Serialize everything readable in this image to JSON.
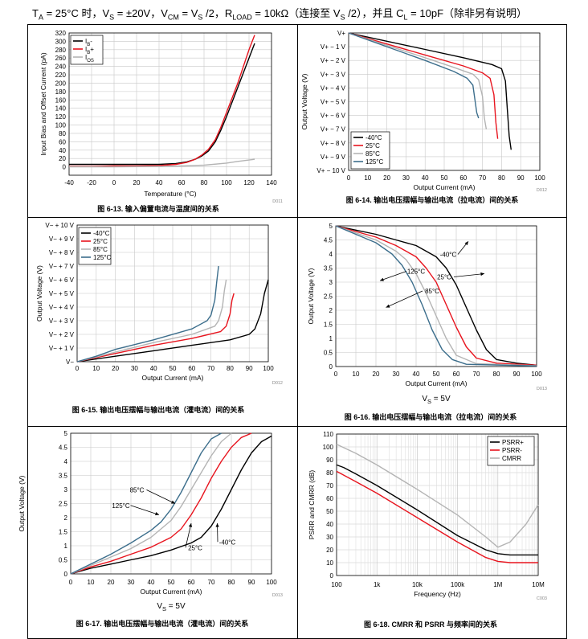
{
  "header": {
    "parts": [
      "T",
      "A",
      " = 25°C 时，V",
      "S",
      " = ±20V，V",
      "CM",
      " = V",
      "S",
      " /2，R",
      "LOAD",
      " = 10kΩ（连接至 V",
      "S",
      " /2），并且 C",
      "L",
      " = 10pF（除非另有说明）"
    ]
  },
  "colors": {
    "black": "#000000",
    "red": "#E8141E",
    "gray": "#B4B4B4",
    "blue": "#3C6E8C"
  },
  "chart_data": [
    {
      "id": "fig13",
      "type": "line",
      "title": "图 6-13. 输入偏置电流与温度间的关系",
      "xlabel": "Temperature (°C)",
      "ylabel": "Input Bias and Offset Current (pA)",
      "xlim": [
        -40,
        140
      ],
      "ylim": [
        -20,
        320
      ],
      "xticks": [
        -40,
        -20,
        0,
        20,
        40,
        60,
        80,
        100,
        120,
        140
      ],
      "yticks": [
        -20,
        0,
        20,
        40,
        60,
        80,
        100,
        120,
        140,
        160,
        180,
        200,
        220,
        240,
        260,
        280,
        300,
        320
      ],
      "ytick_labels": [
        "",
        "0",
        "20",
        "40",
        "60",
        "80",
        "100",
        "120",
        "140",
        "160",
        "180",
        "200",
        "220",
        "240",
        "260",
        "280",
        "300",
        "320"
      ],
      "code": "D011",
      "legend": {
        "position": "top-left",
        "labels": [
          "I_B-",
          "I_B+",
          "I_OS"
        ]
      },
      "series": [
        {
          "name": "I_B-",
          "color": "black",
          "x": [
            -40,
            -20,
            0,
            20,
            40,
            55,
            65,
            72,
            78,
            84,
            90,
            95,
            100,
            105,
            110,
            115,
            120,
            125
          ],
          "y": [
            6,
            6,
            6,
            6,
            6,
            8,
            12,
            18,
            26,
            38,
            60,
            88,
            120,
            155,
            190,
            225,
            260,
            295
          ]
        },
        {
          "name": "I_B+",
          "color": "red",
          "x": [
            -40,
            -20,
            0,
            20,
            40,
            55,
            65,
            72,
            78,
            84,
            90,
            95,
            100,
            105,
            110,
            115,
            120,
            125
          ],
          "y": [
            1,
            1,
            2,
            2,
            3,
            6,
            11,
            18,
            28,
            42,
            65,
            95,
            130,
            165,
            200,
            240,
            280,
            315
          ]
        },
        {
          "name": "I_OS",
          "color": "gray",
          "x": [
            -40,
            0,
            40,
            60,
            80,
            100,
            110,
            125
          ],
          "y": [
            0,
            0,
            1,
            2,
            4,
            9,
            13,
            18
          ]
        }
      ]
    },
    {
      "id": "fig14",
      "type": "line",
      "title": "图 6-14. 输出电压摆幅与输出电流（拉电流）间的关系",
      "xlabel": "Output Current (mA)",
      "ylabel": "Output Voltage (V)",
      "xlim": [
        0,
        100
      ],
      "ylim": [
        -10,
        0
      ],
      "xticks": [
        0,
        10,
        20,
        30,
        40,
        50,
        60,
        70,
        80,
        90,
        100
      ],
      "yticks": [
        0,
        -1,
        -2,
        -3,
        -4,
        -5,
        -6,
        -7,
        -8,
        -9,
        -10
      ],
      "ytick_labels": [
        "V+",
        "V+ − 1 V",
        "V+ − 2 V",
        "V+ − 3 V",
        "V+ − 4 V",
        "V+ − 5 V",
        "V+ − 6 V",
        "V+ − 7 V",
        "V+ − 8 V",
        "V+ − 9 V",
        "V+ − 10 V"
      ],
      "code": "D012",
      "legend": {
        "position": "bottom-left",
        "labels": [
          "-40°C",
          "25°C",
          "85°C",
          "125°C"
        ]
      },
      "series": [
        {
          "name": "-40°C",
          "color": "black",
          "x": [
            0,
            20,
            40,
            60,
            75,
            80,
            82,
            83,
            84,
            85
          ],
          "y": [
            0,
            -0.6,
            -1.2,
            -1.8,
            -2.3,
            -2.6,
            -3.5,
            -5.5,
            -7.5,
            -8.5
          ]
        },
        {
          "name": "25°C",
          "color": "red",
          "x": [
            0,
            20,
            40,
            60,
            70,
            74,
            76,
            77,
            78
          ],
          "y": [
            0,
            -0.8,
            -1.6,
            -2.4,
            -2.9,
            -3.3,
            -4.5,
            -6.5,
            -7.7
          ]
        },
        {
          "name": "85°C",
          "color": "gray",
          "x": [
            0,
            20,
            40,
            55,
            65,
            68,
            70,
            71,
            72
          ],
          "y": [
            0,
            -0.9,
            -1.8,
            -2.5,
            -3.0,
            -3.4,
            -4.6,
            -6.2,
            -7.0
          ]
        },
        {
          "name": "125°C",
          "color": "blue",
          "x": [
            0,
            20,
            40,
            55,
            62,
            65,
            66,
            67,
            68
          ],
          "y": [
            0,
            -1.0,
            -2.0,
            -2.8,
            -3.3,
            -3.8,
            -4.8,
            -5.8,
            -6.2
          ]
        }
      ]
    },
    {
      "id": "fig15",
      "type": "line",
      "title": "图 6-15. 输出电压摆幅与输出电流（灌电流）间的关系",
      "xlabel": "Output Current (mA)",
      "ylabel": "Output Voltage (V)",
      "xlim": [
        0,
        100
      ],
      "ylim": [
        0,
        10
      ],
      "xticks": [
        0,
        10,
        20,
        30,
        40,
        50,
        60,
        70,
        80,
        90,
        100
      ],
      "yticks": [
        0,
        1,
        2,
        3,
        4,
        5,
        6,
        7,
        8,
        9,
        10
      ],
      "ytick_labels": [
        "V−",
        "V− + 1 V",
        "V− + 2 V",
        "V− + 3 V",
        "V− + 4 V",
        "V− + 5 V",
        "V− + 6 V",
        "V− + 7 V",
        "V− + 8 V",
        "V− + 9 V",
        "V− + 10 V"
      ],
      "code": "D012",
      "legend": {
        "position": "top-left",
        "labels": [
          "-40°C",
          "25°C",
          "85°C",
          "125°C"
        ]
      },
      "series": [
        {
          "name": "-40°C",
          "color": "black",
          "x": [
            0,
            10,
            20,
            40,
            60,
            80,
            90,
            93,
            96,
            98,
            100
          ],
          "y": [
            0,
            0.2,
            0.4,
            0.8,
            1.2,
            1.6,
            2.0,
            2.4,
            3.5,
            5.0,
            6.0
          ]
        },
        {
          "name": "25°C",
          "color": "red",
          "x": [
            0,
            10,
            20,
            40,
            60,
            75,
            78,
            80,
            81,
            82
          ],
          "y": [
            0,
            0.3,
            0.6,
            1.2,
            1.7,
            2.2,
            2.6,
            3.5,
            4.5,
            5.0
          ]
        },
        {
          "name": "85°C",
          "color": "gray",
          "x": [
            0,
            10,
            20,
            40,
            60,
            72,
            74,
            76,
            77,
            78
          ],
          "y": [
            0,
            0.35,
            0.7,
            1.4,
            2.0,
            2.6,
            3.0,
            4.0,
            5.2,
            6.0
          ]
        },
        {
          "name": "125°C",
          "color": "blue",
          "x": [
            0,
            10,
            20,
            40,
            60,
            68,
            70,
            72,
            73,
            74
          ],
          "y": [
            0,
            0.4,
            0.9,
            1.6,
            2.4,
            3.0,
            3.4,
            4.5,
            5.8,
            7.0
          ]
        }
      ]
    },
    {
      "id": "fig16",
      "type": "line",
      "title": "图 6-16. 输出电压摆幅与输出电流（拉电流）间的关系",
      "subtitle": "V_S = 5V",
      "xlabel": "Output Current (mA)",
      "ylabel": "Output Voltage (V)",
      "xlim": [
        0,
        100
      ],
      "ylim": [
        0,
        5
      ],
      "xticks": [
        0,
        10,
        20,
        30,
        40,
        50,
        60,
        70,
        80,
        90,
        100
      ],
      "yticks": [
        0,
        0.5,
        1,
        1.5,
        2,
        2.5,
        3,
        3.5,
        4,
        4.5,
        5
      ],
      "ytick_labels": [
        "0",
        "0.5",
        "1",
        "1.5",
        "2",
        "2.5",
        "3",
        "3.5",
        "4",
        "4.5",
        "5"
      ],
      "code": "D013",
      "annotations": [
        {
          "text": "-40°C",
          "x": 66,
          "y": 4.45,
          "tx": 56,
          "ty": 3.9
        },
        {
          "text": "25°C",
          "x": 74,
          "y": 3.3,
          "tx": 54,
          "ty": 3.1
        },
        {
          "text": "125°C",
          "x": 22,
          "y": 3.05,
          "tx": 40,
          "ty": 3.3
        },
        {
          "text": "85°C",
          "x": 25,
          "y": 2.1,
          "tx": 48,
          "ty": 2.6
        }
      ],
      "series": [
        {
          "name": "-40°C",
          "color": "black",
          "x": [
            0,
            10,
            20,
            30,
            40,
            50,
            55,
            60,
            65,
            70,
            75,
            80,
            90,
            100
          ],
          "y": [
            5,
            4.85,
            4.7,
            4.5,
            4.3,
            3.9,
            3.5,
            2.9,
            2.1,
            1.3,
            0.6,
            0.25,
            0.12,
            0.05
          ]
        },
        {
          "name": "25°C",
          "color": "red",
          "x": [
            0,
            10,
            20,
            30,
            40,
            45,
            50,
            55,
            60,
            65,
            70,
            80,
            100
          ],
          "y": [
            5,
            4.8,
            4.6,
            4.3,
            3.9,
            3.5,
            3.0,
            2.2,
            1.4,
            0.7,
            0.3,
            0.12,
            0.05
          ]
        },
        {
          "name": "85°C",
          "color": "gray",
          "x": [
            0,
            10,
            20,
            30,
            35,
            40,
            45,
            50,
            55,
            60,
            70,
            100
          ],
          "y": [
            5,
            4.75,
            4.5,
            4.1,
            3.8,
            3.3,
            2.6,
            1.8,
            1.0,
            0.4,
            0.1,
            0.03
          ]
        },
        {
          "name": "125°C",
          "color": "blue",
          "x": [
            0,
            10,
            20,
            28,
            33,
            38,
            43,
            48,
            53,
            58,
            65,
            100
          ],
          "y": [
            5,
            4.7,
            4.4,
            4.0,
            3.6,
            3.0,
            2.2,
            1.3,
            0.6,
            0.25,
            0.08,
            0.02
          ]
        }
      ]
    },
    {
      "id": "fig17",
      "type": "line",
      "title": "图 6-17. 输出电压摆幅与输出电流（灌电流）间的关系",
      "subtitle": "V_S = 5V",
      "xlabel": "Output Current (mA)",
      "ylabel": "Output Voltage (V)",
      "xlim": [
        0,
        100
      ],
      "ylim": [
        0,
        5
      ],
      "xticks": [
        0,
        10,
        20,
        30,
        40,
        50,
        60,
        70,
        80,
        90,
        100
      ],
      "yticks": [
        0,
        0.5,
        1,
        1.5,
        2,
        2.5,
        3,
        3.5,
        4,
        4.5,
        5
      ],
      "ytick_labels": [
        "0",
        "0.5",
        "1",
        "1.5",
        "2",
        "2.5",
        "3",
        "3.5",
        "4",
        "4.5",
        "5"
      ],
      "code": "D013",
      "annotations": [
        {
          "text": "85°C",
          "x": 52,
          "y": 2.5,
          "tx": 33,
          "ty": 2.9
        },
        {
          "text": "125°C",
          "x": 44,
          "y": 2.1,
          "tx": 25,
          "ty": 2.35
        },
        {
          "text": "25°C",
          "x": 60,
          "y": 1.8,
          "tx": 62,
          "ty": 0.85
        },
        {
          "text": "-40°C",
          "x": 73,
          "y": 1.8,
          "tx": 78,
          "ty": 1.05
        }
      ],
      "series": [
        {
          "name": "-40°C",
          "color": "black",
          "x": [
            0,
            10,
            20,
            30,
            40,
            50,
            60,
            65,
            70,
            75,
            80,
            85,
            90,
            95,
            100
          ],
          "y": [
            0,
            0.2,
            0.35,
            0.5,
            0.65,
            0.85,
            1.1,
            1.3,
            1.7,
            2.3,
            3.0,
            3.7,
            4.3,
            4.7,
            4.9
          ]
        },
        {
          "name": "25°C",
          "color": "red",
          "x": [
            0,
            10,
            20,
            30,
            40,
            50,
            55,
            60,
            65,
            70,
            75,
            80,
            85,
            90
          ],
          "y": [
            0,
            0.25,
            0.45,
            0.7,
            0.95,
            1.3,
            1.6,
            2.1,
            2.7,
            3.4,
            4.0,
            4.5,
            4.85,
            5.0
          ]
        },
        {
          "name": "85°C",
          "color": "gray",
          "x": [
            0,
            10,
            20,
            30,
            40,
            50,
            55,
            60,
            65,
            70,
            75,
            80
          ],
          "y": [
            0,
            0.3,
            0.6,
            0.9,
            1.3,
            1.9,
            2.4,
            3.0,
            3.6,
            4.2,
            4.7,
            5.0
          ]
        },
        {
          "name": "125°C",
          "color": "blue",
          "x": [
            0,
            10,
            20,
            30,
            40,
            45,
            50,
            55,
            60,
            65,
            70,
            75
          ],
          "y": [
            0,
            0.35,
            0.7,
            1.1,
            1.55,
            1.85,
            2.3,
            2.9,
            3.6,
            4.3,
            4.8,
            5.0
          ]
        }
      ]
    },
    {
      "id": "fig18",
      "type": "line",
      "title": "图 6-18. CMRR 和 PSRR 与频率间的关系",
      "xlabel": "Frequency (Hz)",
      "ylabel": "PSRR and CMRR (dB)",
      "xscale": "log",
      "xlim": [
        100,
        10000000
      ],
      "ylim": [
        0,
        110
      ],
      "xticks": [
        100,
        1000,
        10000,
        100000,
        1000000,
        10000000
      ],
      "xtick_labels": [
        "100",
        "1k",
        "10k",
        "100k",
        "1M",
        "10M"
      ],
      "yticks": [
        0,
        10,
        20,
        30,
        40,
        50,
        60,
        70,
        80,
        90,
        100,
        110
      ],
      "ytick_labels": [
        "0",
        "10",
        "20",
        "30",
        "40",
        "50",
        "60",
        "70",
        "80",
        "90",
        "100",
        "110"
      ],
      "code": "C003",
      "legend": {
        "position": "top-right",
        "labels": [
          "PSRR+",
          "PSRR-",
          "CMRR"
        ]
      },
      "series": [
        {
          "name": "PSRR+",
          "color": "black",
          "x": [
            100,
            150,
            300,
            1000,
            10000,
            100000,
            500000,
            1000000,
            2000000,
            10000000
          ],
          "y": [
            86,
            84,
            79,
            70,
            51,
            31,
            20,
            17,
            16,
            16
          ]
        },
        {
          "name": "PSRR-",
          "color": "red",
          "x": [
            100,
            300,
            1000,
            10000,
            100000,
            500000,
            1000000,
            2000000,
            10000000
          ],
          "y": [
            81,
            73,
            64,
            45,
            26,
            14,
            11,
            10,
            10
          ]
        },
        {
          "name": "CMRR",
          "color": "gray",
          "x": [
            100,
            300,
            1000,
            10000,
            100000,
            500000,
            1000000,
            2000000,
            5000000,
            10000000
          ],
          "y": [
            102,
            95,
            86,
            67,
            47,
            30,
            22,
            26,
            40,
            55
          ]
        }
      ]
    }
  ]
}
